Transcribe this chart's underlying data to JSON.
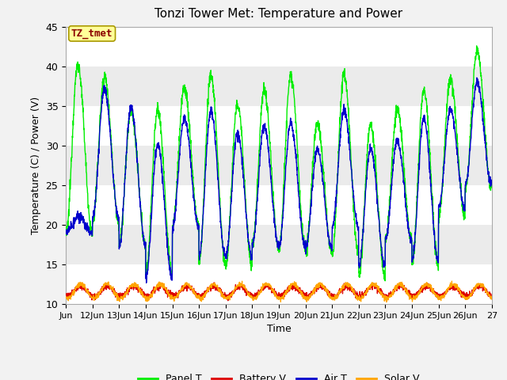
{
  "title": "Tonzi Tower Met: Temperature and Power",
  "xlabel": "Time",
  "ylabel": "Temperature (C) / Power (V)",
  "ylim": [
    10,
    45
  ],
  "xlim_days": [
    11,
    27
  ],
  "xtick_labels": [
    "Jun",
    "12Jun",
    "13Jun",
    "14Jun",
    "15Jun",
    "16Jun",
    "17Jun",
    "18Jun",
    "19Jun",
    "20Jun",
    "21Jun",
    "22Jun",
    "23Jun",
    "24Jun",
    "25Jun",
    "26Jun",
    "27"
  ],
  "xtick_positions": [
    11,
    12,
    13,
    14,
    15,
    16,
    17,
    18,
    19,
    20,
    21,
    22,
    23,
    24,
    25,
    26,
    27
  ],
  "annotation_text": "TZ_tmet",
  "annotation_color": "#8B0000",
  "annotation_bg": "#FFFF99",
  "colors": {
    "panel_t": "#00EE00",
    "battery_v": "#DD0000",
    "air_t": "#0000CC",
    "solar_v": "#FFA500"
  },
  "legend_labels": [
    "Panel T",
    "Battery V",
    "Air T",
    "Solar V"
  ],
  "plot_bg_light": "#EBEBEB",
  "plot_bg_dark": "#D8D8D8",
  "grid_color": "#FFFFFF",
  "fig_bg": "#F2F2F2"
}
